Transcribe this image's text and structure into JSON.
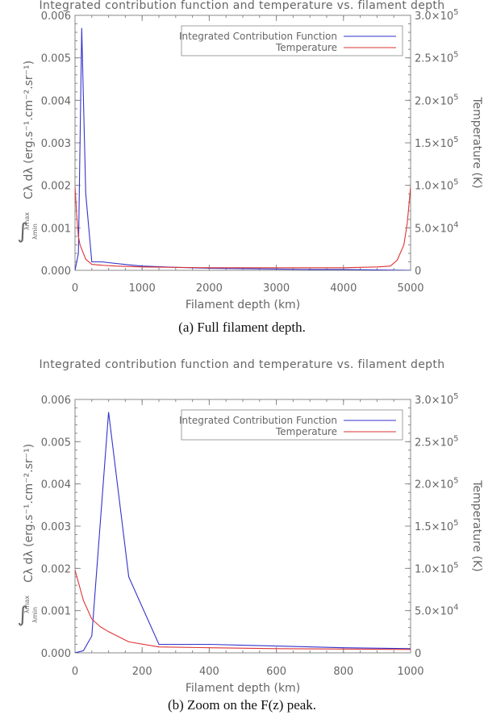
{
  "chart_data": [
    {
      "type": "line",
      "title": "Integrated contribution function and temperature vs. filament depth",
      "caption": "(a)  Full filament depth.",
      "xlabel": "Filament depth (km)",
      "ylabel_left": "Cλ dλ (erg.s⁻¹.cm⁻².sr⁻¹)",
      "ylabel_left_integral_upper": "λmax",
      "ylabel_left_integral_lower": "λmin",
      "ylabel_right": "Temperature (K)",
      "xlim": [
        0,
        5000
      ],
      "ylim_left": [
        0,
        0.006
      ],
      "ylim_right": [
        0,
        300000
      ],
      "x_ticks": [
        0,
        1000,
        2000,
        3000,
        4000,
        5000
      ],
      "x_tick_labels": [
        "0",
        "1000",
        "2000",
        "3000",
        "4000",
        "5000"
      ],
      "y_left_ticks": [
        0,
        0.001,
        0.002,
        0.003,
        0.004,
        0.005,
        0.006
      ],
      "y_left_tick_labels": [
        "0.000",
        "0.001",
        "0.002",
        "0.003",
        "0.004",
        "0.005",
        "0.006"
      ],
      "y_right_ticks": [
        0,
        50000,
        100000,
        150000,
        200000,
        250000,
        300000
      ],
      "y_right_tick_labels": [
        {
          "base": "0",
          "exp": ""
        },
        {
          "base": "5.0×10",
          "exp": "4"
        },
        {
          "base": "1.0×10",
          "exp": "5"
        },
        {
          "base": "1.5×10",
          "exp": "5"
        },
        {
          "base": "2.0×10",
          "exp": "5"
        },
        {
          "base": "2.5×10",
          "exp": "5"
        },
        {
          "base": "3.0×10",
          "exp": "5"
        }
      ],
      "legend_position": "top-right",
      "series": [
        {
          "name": "Integrated Contribution Function",
          "color": "#3333cc",
          "axis": "left",
          "x": [
            0,
            50,
            100,
            160,
            250,
            400,
            500,
            800,
            1000,
            1500,
            2000,
            2500,
            3000,
            3500,
            4000,
            4500,
            5000
          ],
          "y": [
            0.0,
            0.0004,
            0.0057,
            0.0018,
            0.0002,
            0.0002,
            0.00018,
            0.00013,
            0.0001,
            7e-05,
            5e-05,
            4e-05,
            3e-05,
            2e-05,
            2e-05,
            1e-05,
            0.0
          ]
        },
        {
          "name": "Temperature",
          "color": "#dd3333",
          "axis": "right",
          "x": [
            0,
            25,
            50,
            75,
            100,
            160,
            250,
            400,
            600,
            1000,
            2000,
            3000,
            4000,
            4500,
            4700,
            4800,
            4900,
            4950,
            5000
          ],
          "y": [
            98000,
            65000,
            40000,
            30000,
            25000,
            13000,
            7000,
            6000,
            5000,
            4000,
            3000,
            3000,
            3000,
            4000,
            5000,
            12000,
            30000,
            55000,
            98000
          ]
        }
      ]
    },
    {
      "type": "line",
      "title": "Integrated contribution function and temperature vs. filament depth",
      "caption": "(b)  Zoom on the F(z) peak.",
      "xlabel": "Filament depth (km)",
      "ylabel_left": "Cλ dλ (erg.s⁻¹.cm⁻².sr⁻¹)",
      "ylabel_left_integral_upper": "λmax",
      "ylabel_left_integral_lower": "λmin",
      "ylabel_right": "Temperature (K)",
      "xlim": [
        0,
        1000
      ],
      "ylim_left": [
        0,
        0.006
      ],
      "ylim_right": [
        0,
        300000
      ],
      "x_ticks": [
        0,
        200,
        400,
        600,
        800,
        1000
      ],
      "x_tick_labels": [
        "0",
        "200",
        "400",
        "600",
        "800",
        "1000"
      ],
      "y_left_ticks": [
        0,
        0.001,
        0.002,
        0.003,
        0.004,
        0.005,
        0.006
      ],
      "y_left_tick_labels": [
        "0.000",
        "0.001",
        "0.002",
        "0.003",
        "0.004",
        "0.005",
        "0.006"
      ],
      "y_right_ticks": [
        0,
        50000,
        100000,
        150000,
        200000,
        250000,
        300000
      ],
      "y_right_tick_labels": [
        {
          "base": "0",
          "exp": ""
        },
        {
          "base": "5.0×10",
          "exp": "4"
        },
        {
          "base": "1.0×10",
          "exp": "5"
        },
        {
          "base": "1.5×10",
          "exp": "5"
        },
        {
          "base": "2.0×10",
          "exp": "5"
        },
        {
          "base": "2.5×10",
          "exp": "5"
        },
        {
          "base": "3.0×10",
          "exp": "5"
        }
      ],
      "legend_position": "top-right",
      "series": [
        {
          "name": "Integrated Contribution Function",
          "color": "#3333cc",
          "axis": "left",
          "x": [
            0,
            25,
            50,
            100,
            160,
            250,
            400,
            500,
            600,
            800,
            1000
          ],
          "y": [
            0.0,
            5e-05,
            0.0004,
            0.0057,
            0.0018,
            0.0002,
            0.0002,
            0.00018,
            0.00016,
            0.00012,
            0.0001
          ]
        },
        {
          "name": "Temperature",
          "color": "#dd3333",
          "axis": "right",
          "x": [
            0,
            25,
            50,
            75,
            100,
            160,
            250,
            400,
            600,
            800,
            1000
          ],
          "y": [
            98000,
            62000,
            40000,
            31000,
            25000,
            13000,
            7000,
            6000,
            5000,
            4500,
            4000
          ]
        }
      ]
    }
  ]
}
